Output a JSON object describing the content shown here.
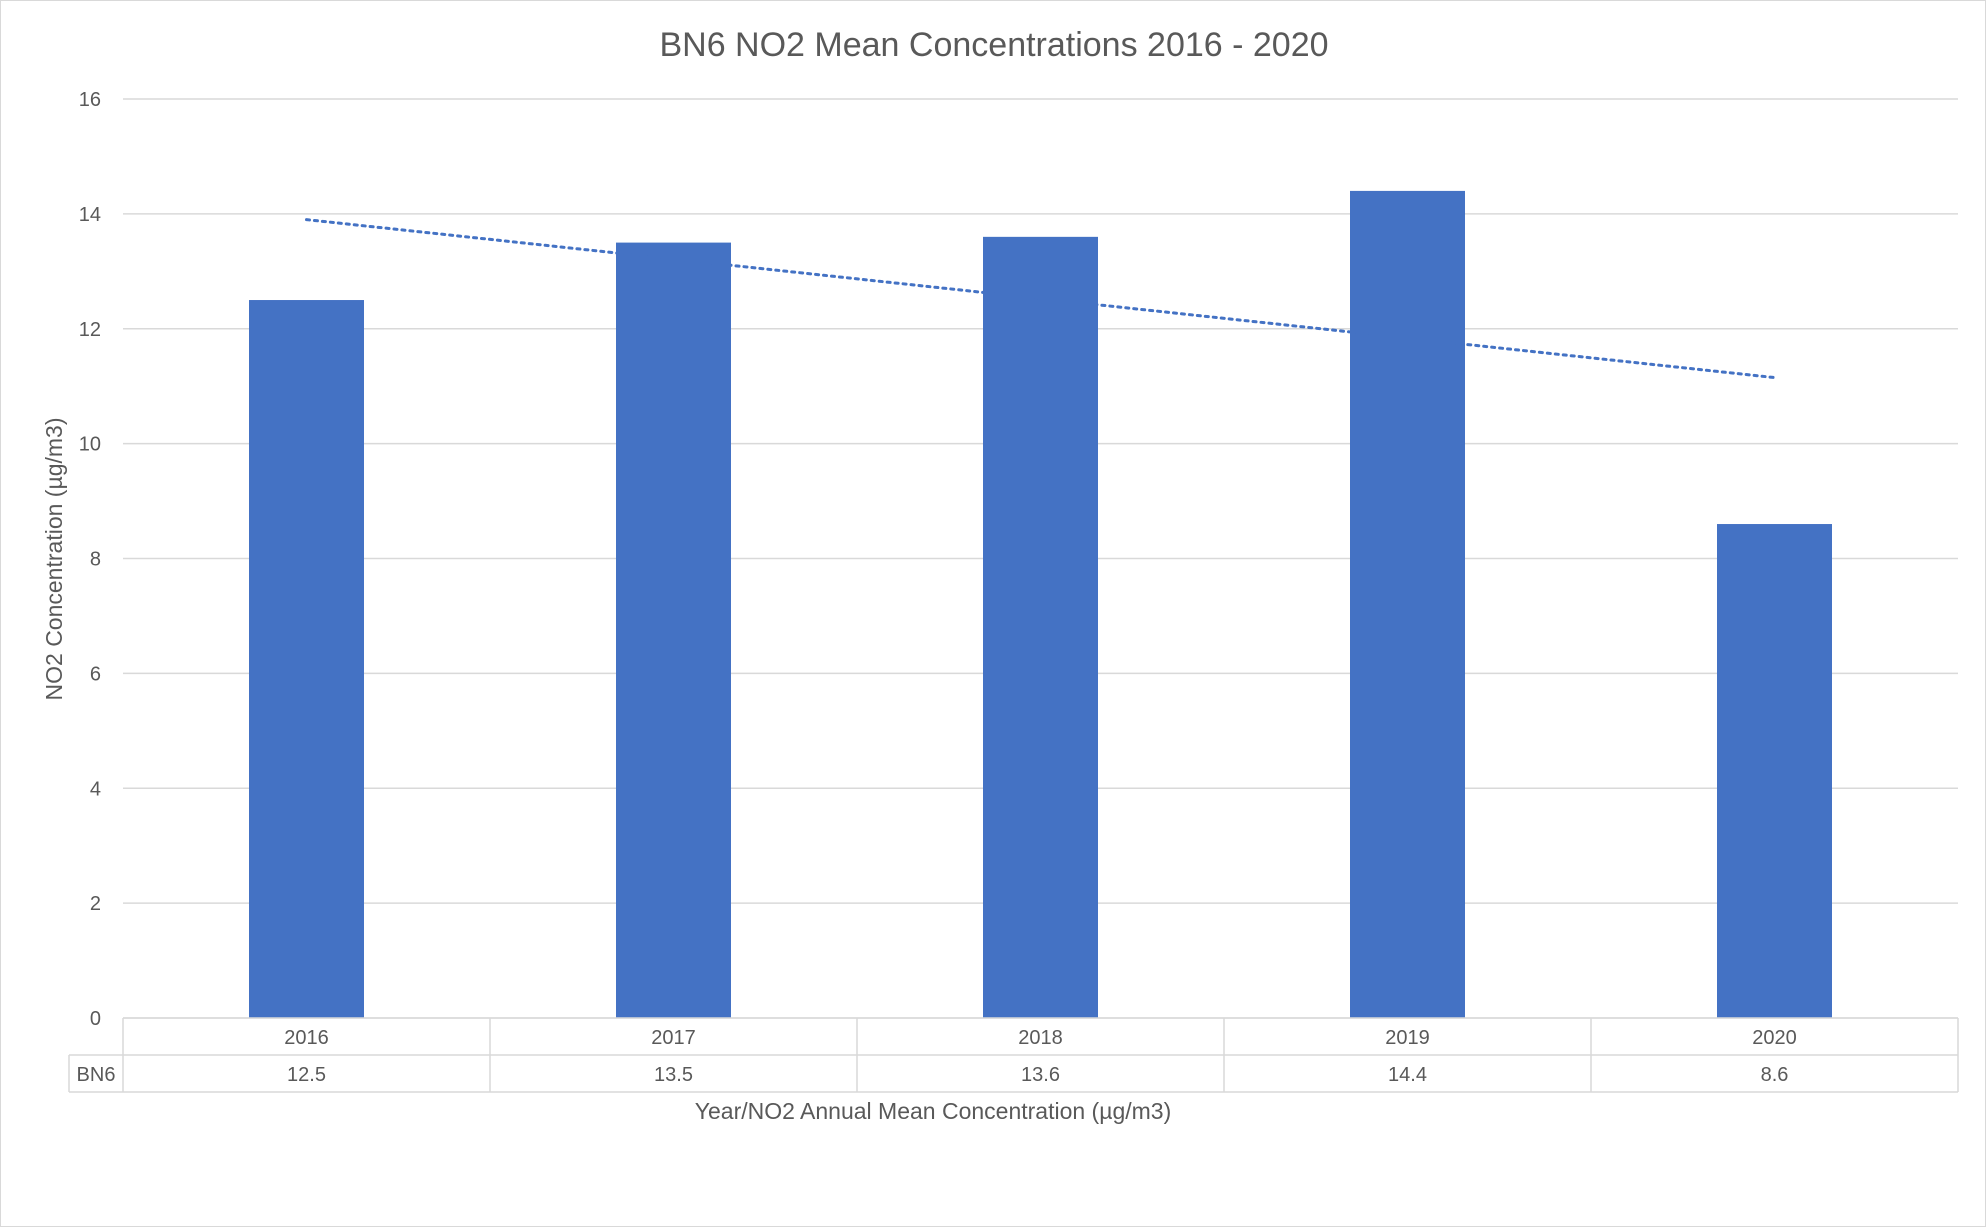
{
  "chart_data": {
    "type": "bar",
    "title": "BN6 NO2 Mean Concentrations 2016 - 2020",
    "xlabel": "Year/NO2 Annual Mean Concentration (µg/m3)",
    "ylabel": "NO2 Concentration (µg/m3)",
    "ylim": [
      0,
      16
    ],
    "yticks": [
      0,
      2,
      4,
      6,
      8,
      10,
      12,
      14,
      16
    ],
    "grid": true,
    "categories": [
      "2016",
      "2017",
      "2018",
      "2019",
      "2020"
    ],
    "series": [
      {
        "name": "BN6",
        "values": [
          12.5,
          13.5,
          13.6,
          14.4,
          8.6
        ],
        "color": "#4472c4"
      }
    ],
    "trendline": {
      "type": "linear",
      "style": "dotted",
      "color": "#4472c4",
      "start": 13.9,
      "end": 11.15
    },
    "data_table": {
      "row_label": "BN6",
      "values": [
        "12.5",
        "13.5",
        "13.6",
        "14.4",
        "8.6"
      ]
    }
  }
}
